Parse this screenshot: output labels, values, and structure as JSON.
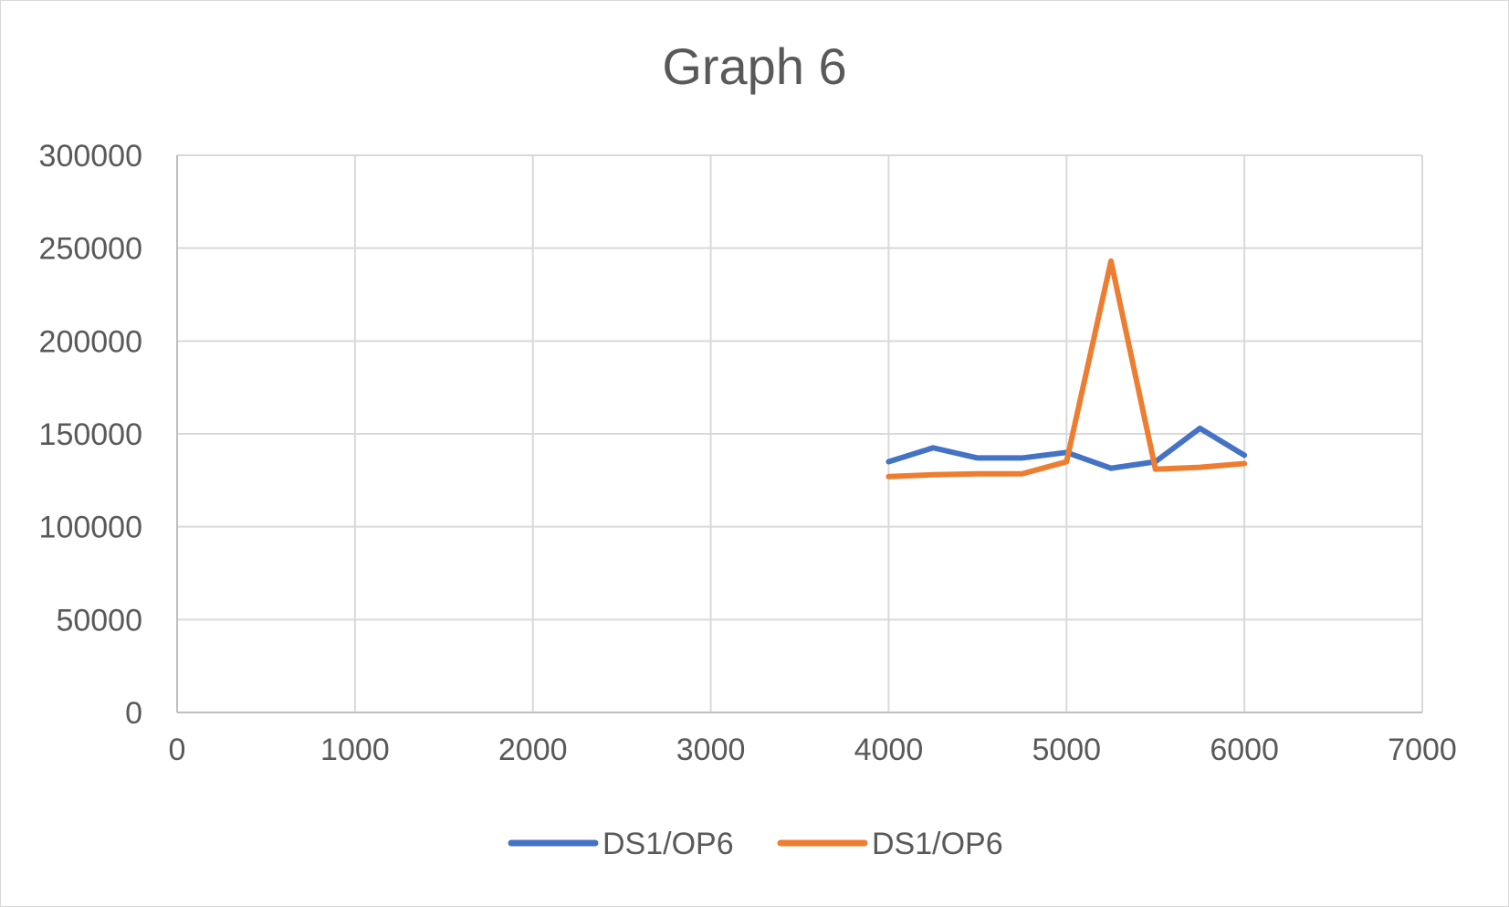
{
  "chart_data": {
    "type": "line",
    "title": "Graph 6",
    "xlabel": "",
    "ylabel": "",
    "xlim": [
      0,
      7000
    ],
    "ylim": [
      0,
      300000
    ],
    "x_ticks": [
      0,
      1000,
      2000,
      3000,
      4000,
      5000,
      6000,
      7000
    ],
    "y_ticks": [
      0,
      50000,
      100000,
      150000,
      200000,
      250000,
      300000
    ],
    "grid": true,
    "legend_position": "bottom",
    "series": [
      {
        "name": "DS1/OP6",
        "color": "#4472c4",
        "points": [
          [
            4000,
            135000
          ],
          [
            4250,
            142500
          ],
          [
            4500,
            137000
          ],
          [
            4750,
            137000
          ],
          [
            5000,
            140000
          ],
          [
            5250,
            131500
          ],
          [
            5500,
            135000
          ],
          [
            5750,
            153000
          ],
          [
            6000,
            138500
          ]
        ]
      },
      {
        "name": "DS1/OP6",
        "color": "#ed7d31",
        "points": [
          [
            4000,
            127000
          ],
          [
            4250,
            128000
          ],
          [
            4500,
            128500
          ],
          [
            4750,
            128500
          ],
          [
            5000,
            135000
          ],
          [
            5250,
            243000
          ],
          [
            5500,
            131000
          ],
          [
            5750,
            132000
          ],
          [
            6000,
            134000
          ]
        ]
      }
    ]
  }
}
